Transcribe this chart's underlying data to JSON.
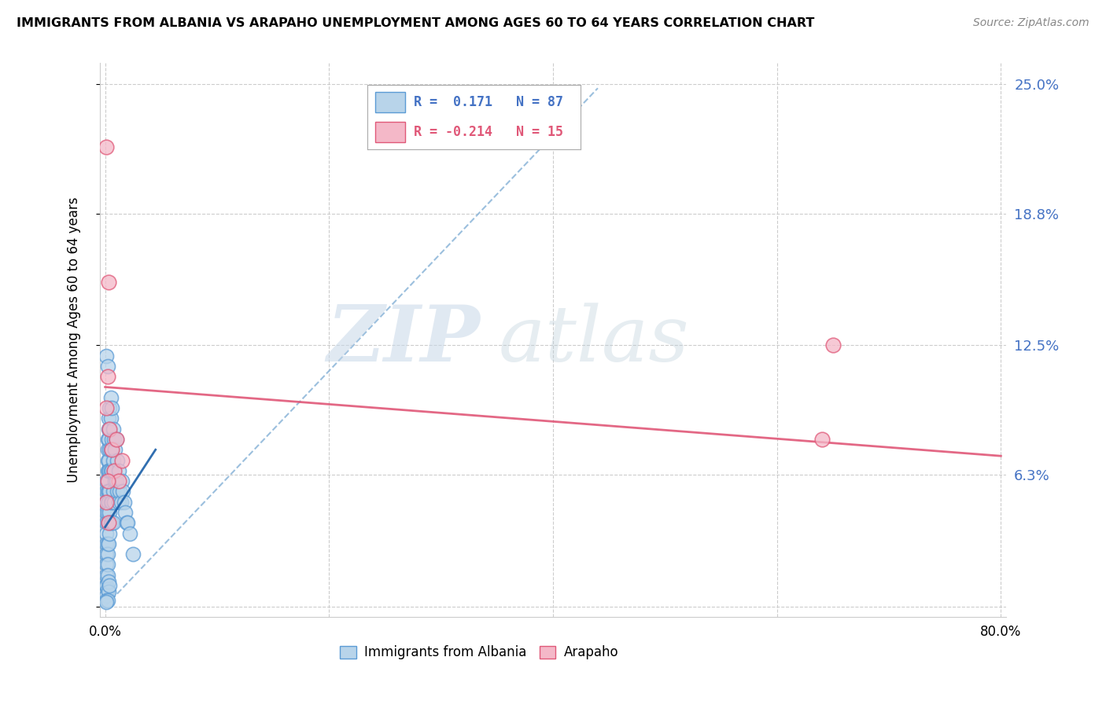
{
  "title": "IMMIGRANTS FROM ALBANIA VS ARAPAHO UNEMPLOYMENT AMONG AGES 60 TO 64 YEARS CORRELATION CHART",
  "source": "Source: ZipAtlas.com",
  "ylabel": "Unemployment Among Ages 60 to 64 years",
  "legend_albania": "Immigrants from Albania",
  "legend_arapaho": "Arapaho",
  "R_albania": 0.171,
  "N_albania": 87,
  "R_arapaho": -0.214,
  "N_arapaho": 15,
  "xlim": [
    0.0,
    0.8
  ],
  "ylim": [
    0.0,
    0.25
  ],
  "ytick_vals": [
    0.0,
    0.063,
    0.125,
    0.188,
    0.25
  ],
  "ytick_labels_right": [
    "",
    "6.3%",
    "12.5%",
    "18.8%",
    "25.0%"
  ],
  "xtick_vals": [
    0.0,
    0.2,
    0.4,
    0.6,
    0.8
  ],
  "xtick_labels": [
    "0.0%",
    "",
    "",
    "",
    "80.0%"
  ],
  "color_albania_fill": "#b8d4ea",
  "color_albania_edge": "#5b9bd5",
  "color_arapaho_fill": "#f4b8c8",
  "color_arapaho_edge": "#e05878",
  "color_albania_trendline": "#8ab4d8",
  "color_arapaho_trendline": "#e05878",
  "watermark_zip": "ZIP",
  "watermark_atlas": "atlas",
  "albania_x": [
    0.001,
    0.001,
    0.001,
    0.001,
    0.001,
    0.001,
    0.001,
    0.001,
    0.001,
    0.001,
    0.001,
    0.001,
    0.002,
    0.002,
    0.002,
    0.002,
    0.002,
    0.002,
    0.002,
    0.002,
    0.002,
    0.002,
    0.002,
    0.002,
    0.003,
    0.003,
    0.003,
    0.003,
    0.003,
    0.003,
    0.003,
    0.003,
    0.003,
    0.004,
    0.004,
    0.004,
    0.004,
    0.004,
    0.004,
    0.004,
    0.005,
    0.005,
    0.005,
    0.005,
    0.005,
    0.005,
    0.006,
    0.006,
    0.006,
    0.006,
    0.006,
    0.007,
    0.007,
    0.007,
    0.007,
    0.008,
    0.008,
    0.008,
    0.009,
    0.009,
    0.01,
    0.01,
    0.011,
    0.011,
    0.012,
    0.012,
    0.013,
    0.014,
    0.015,
    0.016,
    0.017,
    0.018,
    0.019,
    0.02,
    0.022,
    0.025,
    0.001,
    0.002,
    0.002,
    0.003,
    0.003,
    0.004,
    0.001,
    0.002,
    0.001,
    0.001,
    0.002
  ],
  "albania_y": [
    0.06,
    0.055,
    0.05,
    0.045,
    0.04,
    0.035,
    0.03,
    0.025,
    0.02,
    0.015,
    0.01,
    0.005,
    0.08,
    0.075,
    0.07,
    0.065,
    0.06,
    0.055,
    0.05,
    0.045,
    0.04,
    0.03,
    0.025,
    0.02,
    0.09,
    0.085,
    0.08,
    0.07,
    0.065,
    0.055,
    0.05,
    0.04,
    0.03,
    0.095,
    0.085,
    0.075,
    0.065,
    0.055,
    0.045,
    0.035,
    0.1,
    0.09,
    0.075,
    0.065,
    0.05,
    0.04,
    0.095,
    0.08,
    0.065,
    0.05,
    0.04,
    0.085,
    0.07,
    0.055,
    0.04,
    0.08,
    0.065,
    0.05,
    0.075,
    0.06,
    0.08,
    0.06,
    0.07,
    0.055,
    0.065,
    0.05,
    0.055,
    0.05,
    0.06,
    0.055,
    0.05,
    0.045,
    0.04,
    0.04,
    0.035,
    0.025,
    0.01,
    0.015,
    0.008,
    0.012,
    0.007,
    0.01,
    0.003,
    0.003,
    0.002,
    0.12,
    0.115
  ],
  "arapaho_x": [
    0.001,
    0.001,
    0.002,
    0.003,
    0.004,
    0.006,
    0.008,
    0.01,
    0.012,
    0.015,
    0.64,
    0.65,
    0.001,
    0.002,
    0.003
  ],
  "arapaho_y": [
    0.22,
    0.095,
    0.11,
    0.155,
    0.085,
    0.075,
    0.065,
    0.08,
    0.06,
    0.07,
    0.08,
    0.125,
    0.05,
    0.06,
    0.04
  ],
  "alb_line_x": [
    0.0,
    0.44
  ],
  "alb_line_y": [
    0.0,
    0.248
  ],
  "ara_line_x": [
    0.0,
    0.8
  ],
  "ara_line_y": [
    0.105,
    0.072
  ],
  "alb_short_line_x": [
    0.0,
    0.045
  ],
  "alb_short_line_y": [
    0.038,
    0.075
  ]
}
